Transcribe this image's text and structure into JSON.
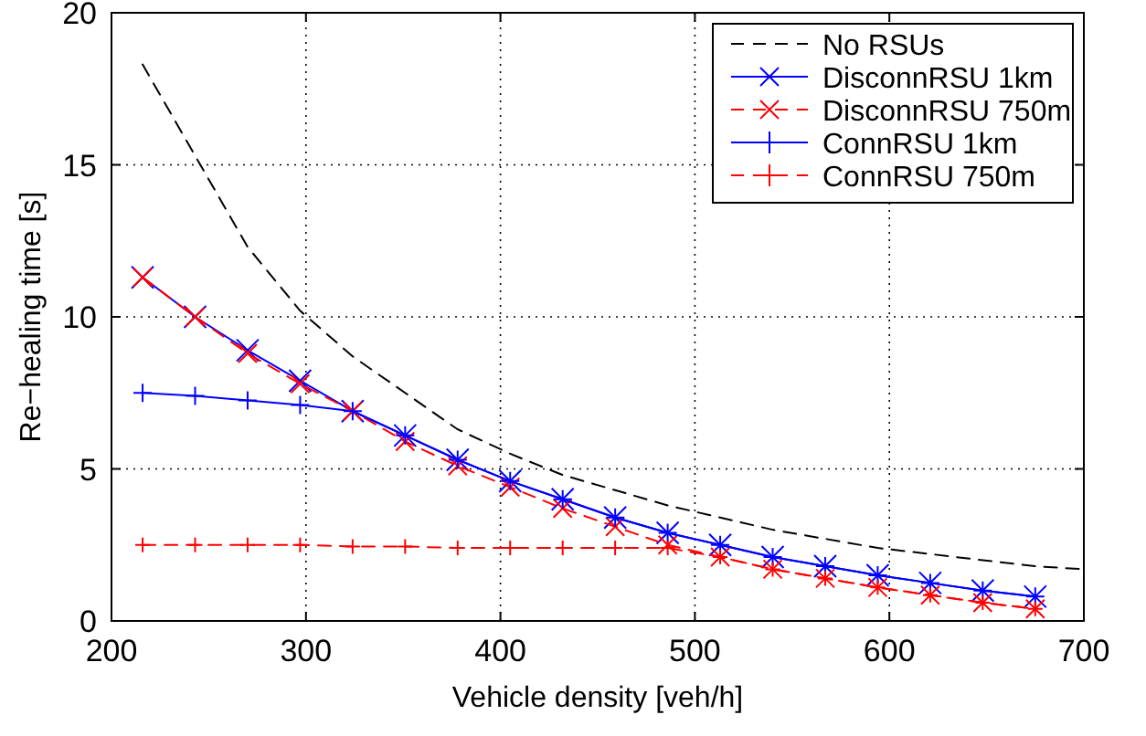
{
  "chart_data": {
    "type": "line",
    "xlabel": "Vehicle density [veh/h]",
    "ylabel": "Re−healing time [s]",
    "xlim": [
      200,
      700
    ],
    "ylim": [
      0,
      20
    ],
    "xticks": [
      200,
      300,
      400,
      500,
      600,
      700
    ],
    "yticks": [
      0,
      5,
      10,
      15,
      20
    ],
    "grid": true,
    "legend": "top right",
    "x": [
      216,
      243,
      270,
      297,
      324,
      351,
      378,
      405,
      432,
      459,
      486,
      513,
      540,
      567,
      594,
      621,
      648,
      675
    ],
    "series": [
      {
        "name": "No RSUs",
        "color": "#000000",
        "line_style": "dashed",
        "marker": "none",
        "x": [
          216,
          243,
          270,
          297,
          324,
          351,
          378,
          405,
          432,
          459,
          486,
          513,
          540,
          567,
          594,
          621,
          648,
          675,
          700
        ],
        "values": [
          18.3,
          15.3,
          12.3,
          10.2,
          8.7,
          7.5,
          6.3,
          5.5,
          4.8,
          4.3,
          3.8,
          3.4,
          3.0,
          2.7,
          2.4,
          2.2,
          2.0,
          1.8,
          1.7
        ]
      },
      {
        "name": "DisconnRSU 1km",
        "color": "#0000ff",
        "line_style": "solid",
        "marker": "cross",
        "values": [
          11.3,
          10.0,
          8.9,
          7.9,
          6.9,
          6.1,
          5.3,
          4.6,
          4.0,
          3.4,
          2.9,
          2.5,
          2.1,
          1.8,
          1.5,
          1.25,
          1.0,
          0.8
        ]
      },
      {
        "name": "DisconnRSU 750m",
        "color": "#ff0000",
        "line_style": "dashed",
        "marker": "cross",
        "values": [
          11.3,
          10.0,
          8.8,
          7.8,
          6.9,
          5.9,
          5.1,
          4.4,
          3.7,
          3.1,
          2.5,
          2.1,
          1.7,
          1.4,
          1.1,
          0.85,
          0.6,
          0.4
        ]
      },
      {
        "name": "ConnRSU 1km",
        "color": "#0000ff",
        "line_style": "solid",
        "marker": "plus",
        "values": [
          7.5,
          7.4,
          7.25,
          7.1,
          6.9,
          6.1,
          5.3,
          4.6,
          4.0,
          3.4,
          2.9,
          2.5,
          2.1,
          1.8,
          1.5,
          1.25,
          1.0,
          0.8
        ]
      },
      {
        "name": "ConnRSU 750m",
        "color": "#ff0000",
        "line_style": "dashed",
        "marker": "plus",
        "values": [
          2.5,
          2.5,
          2.5,
          2.5,
          2.45,
          2.45,
          2.4,
          2.4,
          2.4,
          2.4,
          2.4,
          2.1,
          1.7,
          1.4,
          1.1,
          0.85,
          0.6,
          0.4
        ]
      }
    ]
  }
}
